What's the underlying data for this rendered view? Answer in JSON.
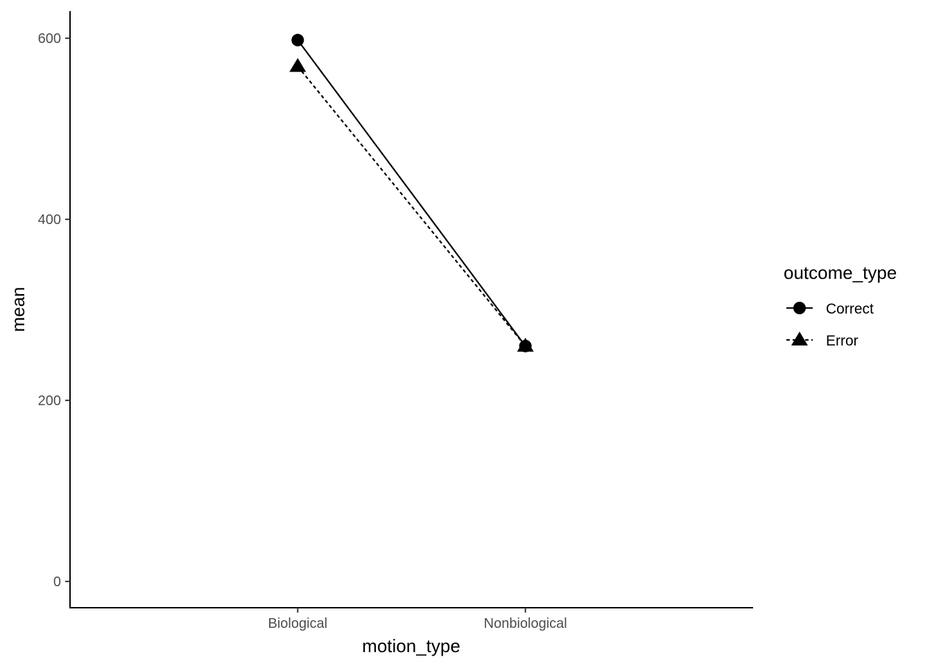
{
  "chart_data": {
    "type": "line",
    "title": "",
    "xlabel": "motion_type",
    "ylabel": "mean",
    "categories": [
      "Biological",
      "Nonbiological"
    ],
    "series": [
      {
        "name": "Correct",
        "values": [
          598,
          260
        ],
        "marker": "circle",
        "line_style": "solid"
      },
      {
        "name": "Error",
        "values": [
          569,
          260
        ],
        "marker": "triangle",
        "line_style": "dotted"
      }
    ],
    "ylim": [
      -29,
      630
    ],
    "yticks": [
      0,
      200,
      400,
      600
    ],
    "grid": false,
    "legend": {
      "title": "outcome_type",
      "position": "right"
    },
    "colors": {
      "line": "#000000",
      "tick_text": "#4d4d4d",
      "background": "#ffffff"
    }
  }
}
